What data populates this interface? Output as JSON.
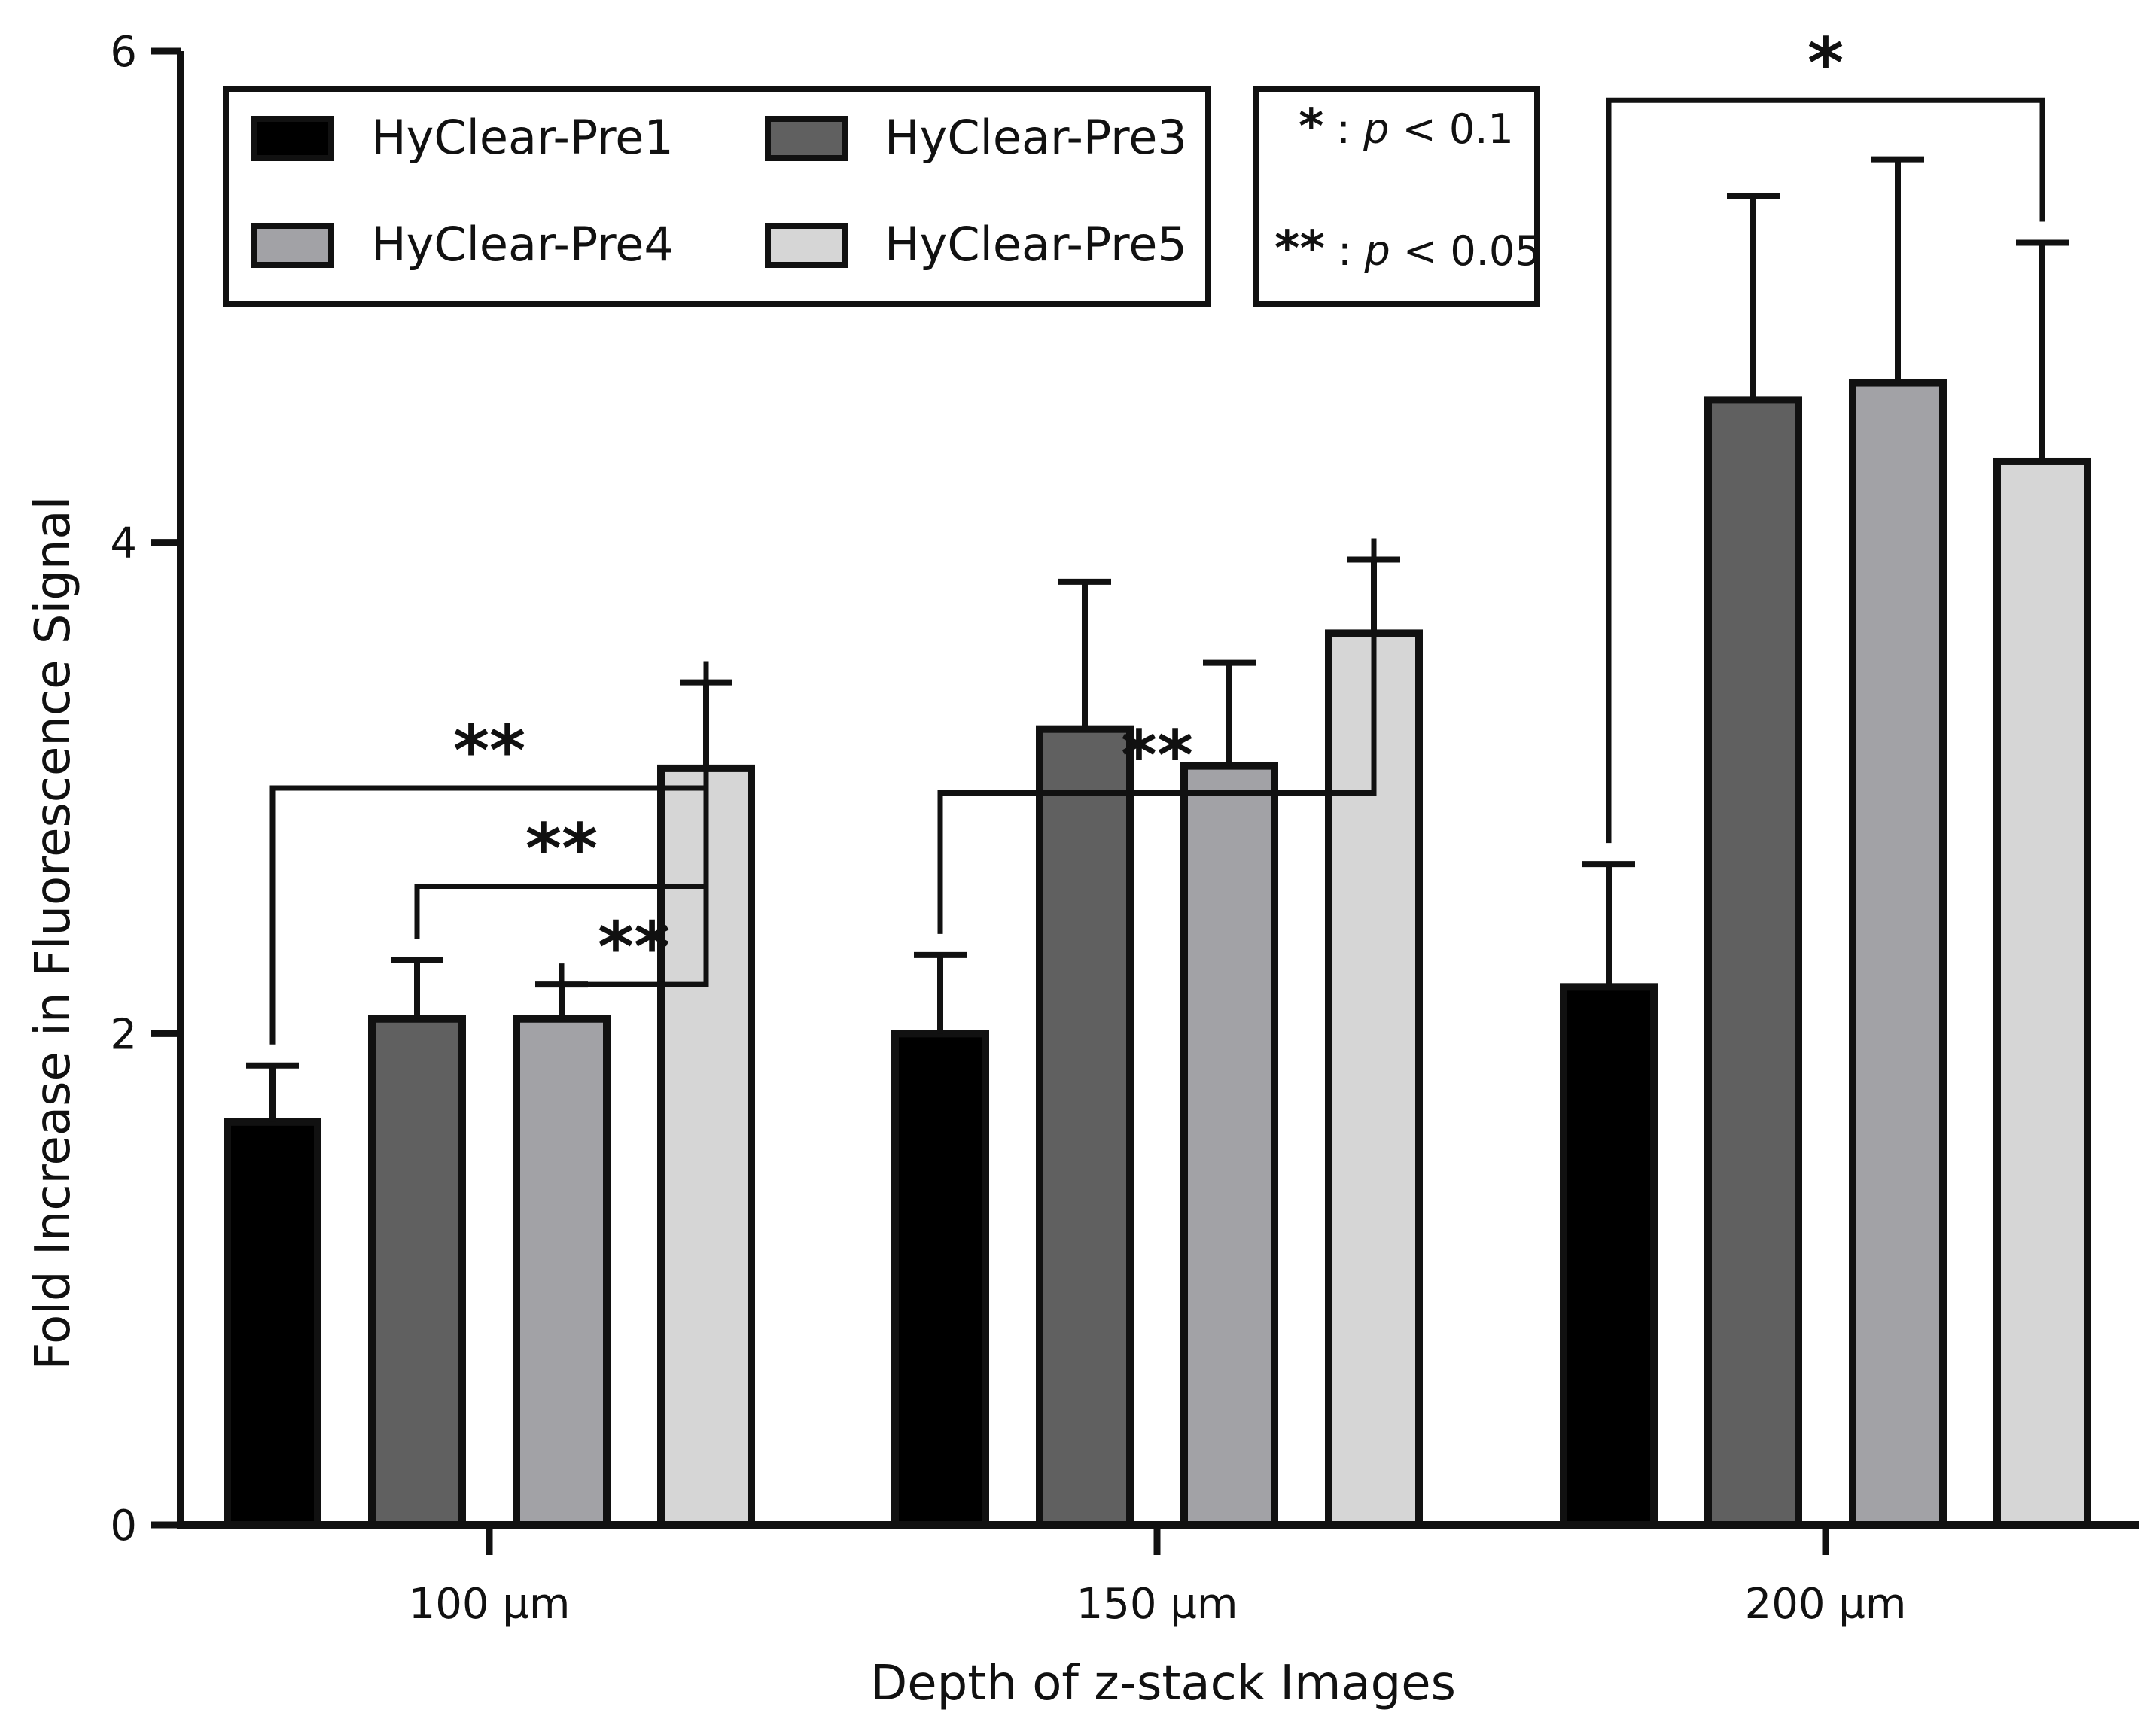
{
  "chart_data": {
    "type": "bar",
    "title": "",
    "xlabel": "Depth of z-stack Images",
    "ylabel": "Fold Increase in Fluorescence Signal",
    "ylim": [
      0,
      6
    ],
    "yticks": [
      0,
      2,
      4,
      6
    ],
    "yticklabels": [
      "0",
      "2",
      "4",
      "6"
    ],
    "categories": [
      "100 µm",
      "150 µm",
      "200 µm"
    ],
    "series": [
      {
        "name": "HyClear-Pre1",
        "color": "#000000",
        "values": [
          1.64,
          2.0,
          2.19
        ],
        "errors": [
          0.23,
          0.32,
          0.5
        ]
      },
      {
        "name": "HyClear-Pre3",
        "color": "#606060",
        "values": [
          2.06,
          3.24,
          4.58
        ],
        "errors": [
          0.24,
          0.6,
          0.83
        ]
      },
      {
        "name": "HyClear-Pre4",
        "color": "#a2a2a6",
        "values": [
          2.06,
          3.09,
          4.65
        ],
        "errors": [
          0.14,
          0.42,
          0.91
        ]
      },
      {
        "name": "HyClear-Pre5",
        "color": "#d6d6d6",
        "values": [
          3.08,
          3.63,
          4.33
        ],
        "errors": [
          0.35,
          0.3,
          0.89
        ]
      }
    ],
    "significance_legend": [
      {
        "stars": "*",
        "sep": ":",
        "p": "p",
        "text": " < 0.1"
      },
      {
        "stars": "**",
        "sep": ":",
        "p": "p",
        "text": " < 0.05"
      }
    ],
    "significance": [
      {
        "category": 0,
        "from": 0,
        "to": 3,
        "level": 3.0,
        "label": "**"
      },
      {
        "category": 0,
        "from": 1,
        "to": 3,
        "level": 2.6,
        "label": "**"
      },
      {
        "category": 0,
        "from": 2,
        "to": 3,
        "level": 2.2,
        "label": "**"
      },
      {
        "category": 1,
        "from": 0,
        "to": 3,
        "level": 2.98,
        "label": "**"
      },
      {
        "category": 2,
        "from": 0,
        "to": 3,
        "level": 5.8,
        "label": "*"
      }
    ]
  }
}
